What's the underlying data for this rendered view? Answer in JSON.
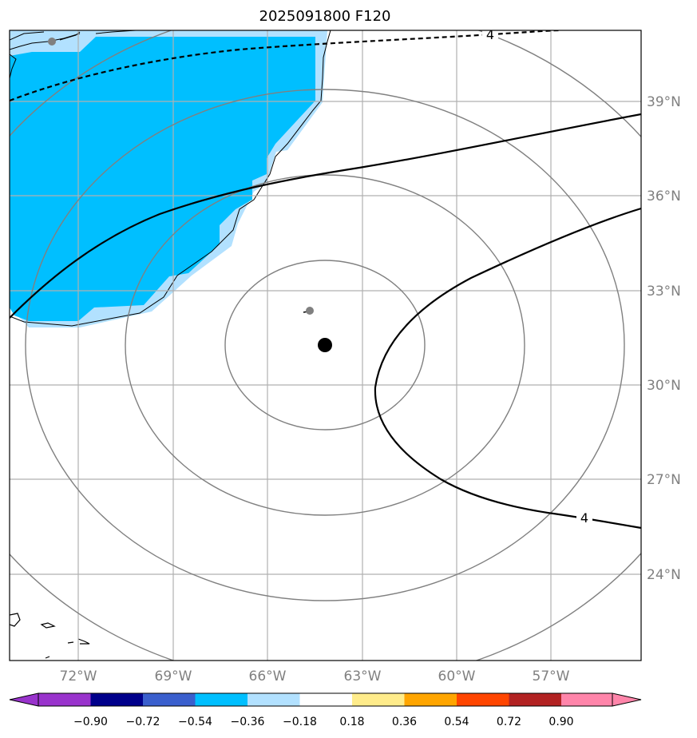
{
  "title": "2025091800 F120",
  "map": {
    "lon_ticks": [
      "72°W",
      "69°W",
      "66°W",
      "63°W",
      "60°W",
      "57°W"
    ],
    "lat_ticks": [
      "39°N",
      "36°N",
      "33°N",
      "30°N",
      "27°N",
      "24°N"
    ],
    "contour_labels": [
      "4",
      "4"
    ],
    "storm_marker": "black-dot",
    "grid": true
  },
  "colorbar": {
    "ticks": [
      "−0.90",
      "−0.72",
      "−0.54",
      "−0.36",
      "−0.18",
      "0.18",
      "0.36",
      "0.54",
      "0.72",
      "0.90"
    ],
    "colors": [
      "#9933cc",
      "#00008b",
      "#3a5fcd",
      "#00bfff",
      "#b2e1ff",
      "#ffffff",
      "#ffec8b",
      "#ffa500",
      "#ff4500",
      "#b22222",
      "#ff85aa"
    ]
  },
  "colors": {
    "fill_dark": "#00bfff",
    "fill_light": "#b2e1ff",
    "grid": "#b0b0b0",
    "range_rings": "#808080"
  }
}
